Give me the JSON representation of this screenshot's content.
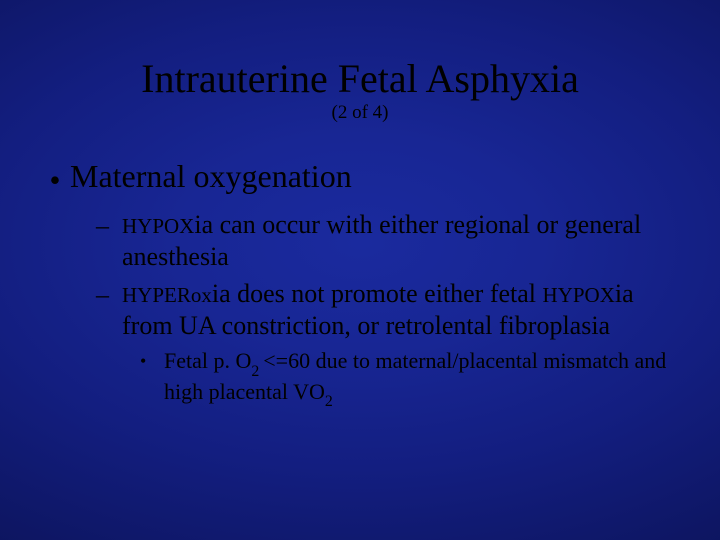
{
  "slide": {
    "title": "Intrauterine Fetal Asphyxia",
    "subtitle": "(2 of 4)",
    "background": {
      "type": "radial-gradient",
      "center_color": "#1a2a9e",
      "outer_color": "#030620"
    },
    "text_color": "#000000",
    "font_family": "Times New Roman",
    "title_fontsize": 40,
    "body_fontsize_level1": 32,
    "body_fontsize_level2": 26,
    "body_fontsize_level3": 22,
    "bullets": {
      "level1_heading": "Maternal oxygenation",
      "level2": [
        {
          "smallcaps_prefix": "HYPOX",
          "rest": "ia can occur with either regional or general anesthesia"
        },
        {
          "pre": "",
          "segments": [
            {
              "sc": "HYPER",
              "tail": "ox"
            },
            {
              "plain": "ia does not promote either fetal "
            },
            {
              "sc": "HYPOX",
              "tail": ""
            },
            {
              "plain": "ia from UA constriction, or retrolental fibroplasia"
            }
          ]
        }
      ],
      "level3": {
        "pre": "Fetal p. O",
        "sub1": "2 ",
        "mid": "<=60  due to maternal/placental mismatch and high placental VO",
        "sub2": "2"
      }
    },
    "page_indicator": {
      "current": 2,
      "total": 4
    }
  }
}
